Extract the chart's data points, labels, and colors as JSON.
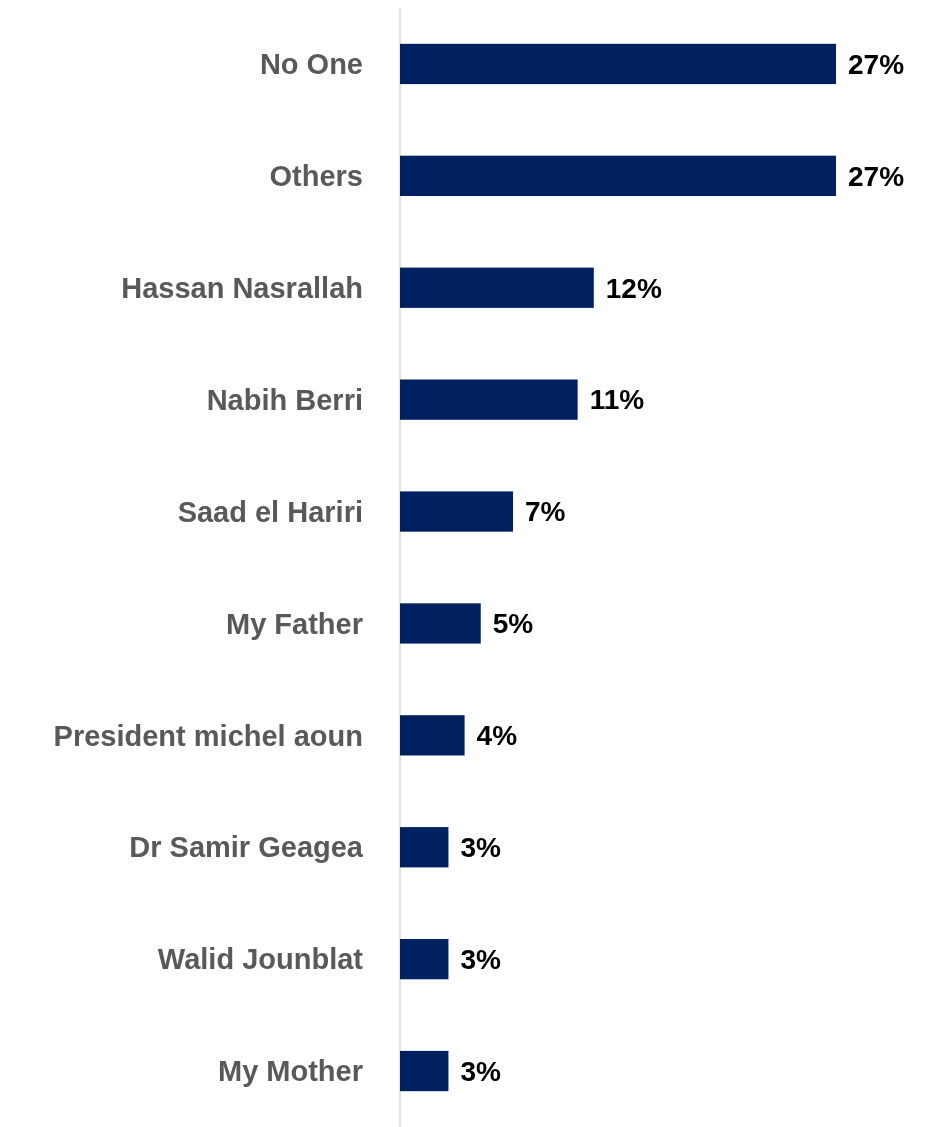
{
  "chart_data": {
    "type": "bar",
    "orientation": "horizontal",
    "categories": [
      "No One",
      "Others",
      "Hassan Nasrallah",
      "Nabih Berri",
      "Saad el Hariri",
      "My Father",
      "President michel aoun",
      "Dr Samir Geagea",
      "Walid Jounblat",
      "My Mother"
    ],
    "values": [
      27,
      27,
      12,
      11,
      7,
      5,
      4,
      3,
      3,
      3
    ],
    "value_labels": [
      "27%",
      "27%",
      "12%",
      "11%",
      "7%",
      "5%",
      "4%",
      "3%",
      "3%",
      "3%"
    ],
    "color": "#002060"
  }
}
